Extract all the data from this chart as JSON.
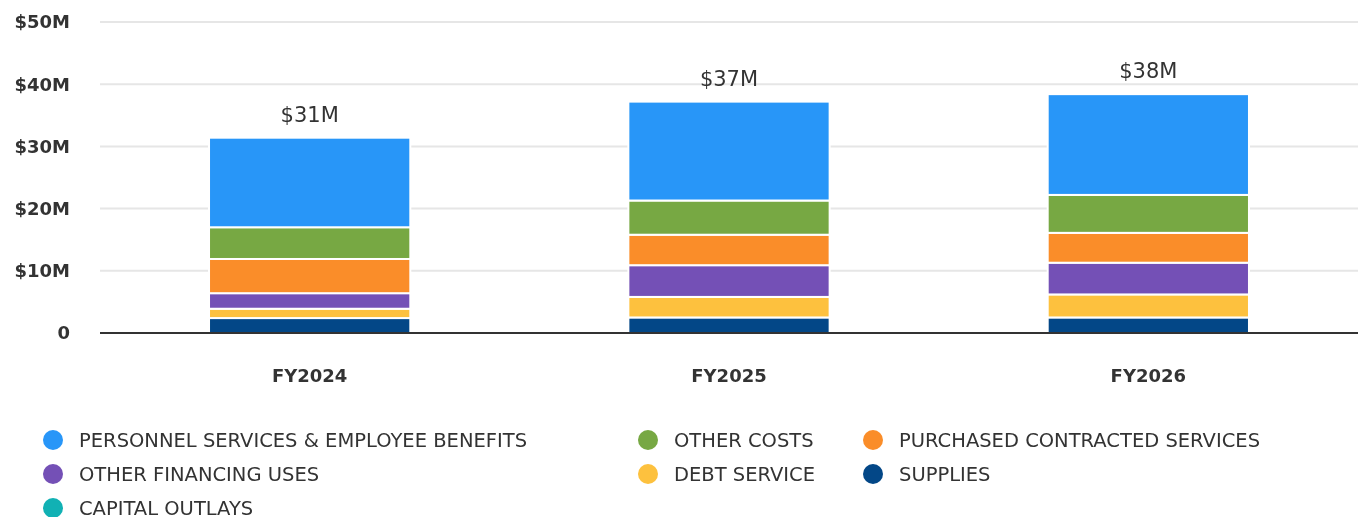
{
  "chart_data": {
    "type": "bar",
    "stacked": true,
    "categories": [
      "FY2024",
      "FY2025",
      "FY2026"
    ],
    "series": [
      {
        "name": "CAPITAL OUTLAYS",
        "color": "#11b1b4",
        "values": [
          0,
          0,
          0
        ]
      },
      {
        "name": "SUPPLIES",
        "color": "#034787",
        "values": [
          2.4,
          2.5,
          2.5
        ]
      },
      {
        "name": "DEBT SERVICE",
        "color": "#fdc13e",
        "values": [
          1.5,
          3.3,
          3.7
        ]
      },
      {
        "name": "OTHER FINANCING USES",
        "color": "#7450b6",
        "values": [
          2.5,
          5.1,
          5.1
        ]
      },
      {
        "name": "PURCHASED CONTRACTED SERVICES",
        "color": "#fa8d29",
        "values": [
          5.5,
          4.9,
          4.8
        ]
      },
      {
        "name": "OTHER COSTS",
        "color": "#77a843",
        "values": [
          5.1,
          5.5,
          6.1
        ]
      },
      {
        "name": "PERSONNEL SERVICES & EMPLOYEE BENEFITS",
        "color": "#2896f8",
        "values": [
          14.4,
          15.9,
          16.2
        ]
      }
    ],
    "ylim": [
      0,
      50
    ],
    "yticks": [
      {
        "value": 0,
        "label": "0"
      },
      {
        "value": 10,
        "label": "$10M"
      },
      {
        "value": 20,
        "label": "$20M"
      },
      {
        "value": 30,
        "label": "$30M"
      },
      {
        "value": 40,
        "label": "$40M"
      },
      {
        "value": 50,
        "label": "$50M"
      }
    ],
    "totals": [
      "$31M",
      "$37M",
      "$38M"
    ],
    "grid": "y",
    "legend": "bottom"
  }
}
